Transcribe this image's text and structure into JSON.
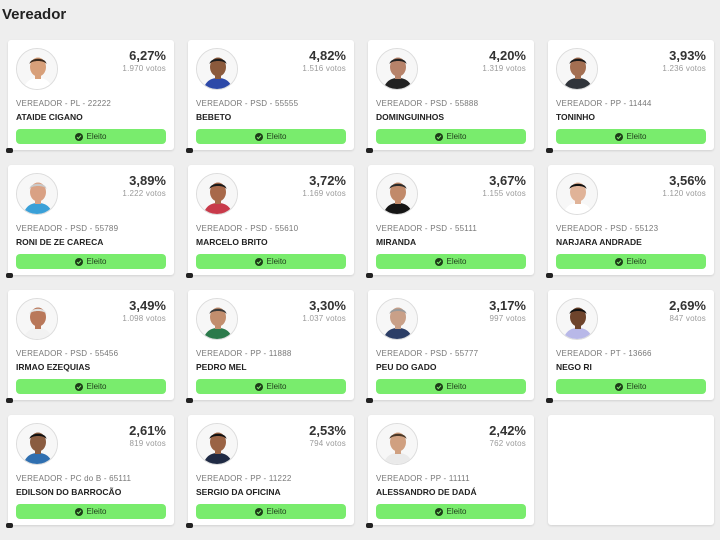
{
  "header": {
    "title": "Vereador"
  },
  "candidates": [
    {
      "pct": "6,27%",
      "votes": "1.970 votos",
      "meta": "VEREADOR - PL - 22222",
      "name": "ATAIDE CIGANO",
      "status": "Eleito",
      "skin": "#d8a07a",
      "shirt": "#ffffff",
      "hair": "#3a2a1e"
    },
    {
      "pct": "4,82%",
      "votes": "1.516 votos",
      "meta": "VEREADOR - PSD - 55555",
      "name": "BEBETO",
      "status": "Eleito",
      "skin": "#8b5a3c",
      "shirt": "#2d49a8",
      "hair": "#1c1c1c"
    },
    {
      "pct": "4,20%",
      "votes": "1.319 votos",
      "meta": "VEREADOR - PSD - 55888",
      "name": "DOMINGUINHOS",
      "status": "Eleito",
      "skin": "#b7836a",
      "shirt": "#222222",
      "hair": "#222222"
    },
    {
      "pct": "3,93%",
      "votes": "1.236 votos",
      "meta": "VEREADOR - PP - 11444",
      "name": "TONINHO",
      "status": "Eleito",
      "skin": "#a36f52",
      "shirt": "#30343a",
      "hair": "#1a1a1a"
    },
    {
      "pct": "3,89%",
      "votes": "1.222 votos",
      "meta": "VEREADOR - PSD - 55789",
      "name": "RONI DE ZE CARECA",
      "status": "Eleito",
      "skin": "#d9a184",
      "shirt": "#3aa0d8",
      "hair": "#c9c9c9"
    },
    {
      "pct": "3,72%",
      "votes": "1.169 votos",
      "meta": "VEREADOR - PSD - 55610",
      "name": "MARCELO BRITO",
      "status": "Eleito",
      "skin": "#a8694a",
      "shirt": "#c83a4a",
      "hair": "#1a1a1a"
    },
    {
      "pct": "3,67%",
      "votes": "1.155 votos",
      "meta": "VEREADOR - PSD - 55111",
      "name": "MIRANDA",
      "status": "Eleito",
      "skin": "#c18a6a",
      "shirt": "#151515",
      "hair": "#2b2b2b"
    },
    {
      "pct": "3,56%",
      "votes": "1.120 votos",
      "meta": "VEREADOR - PSD - 55123",
      "name": "NARJARA ANDRADE",
      "status": "Eleito",
      "skin": "#e0b398",
      "shirt": "#ffffff",
      "hair": "#111111"
    },
    {
      "pct": "3,49%",
      "votes": "1.098 votos",
      "meta": "VEREADOR - PSD - 55456",
      "name": "IRMAO EZEQUIAS",
      "status": "Eleito",
      "skin": "#b9785a",
      "shirt": "#f2f2f2",
      "hair": "#e0e0e0"
    },
    {
      "pct": "3,30%",
      "votes": "1.037 votos",
      "meta": "VEREADOR - PP - 11888",
      "name": "PEDRO MEL",
      "status": "Eleito",
      "skin": "#c28e6e",
      "shirt": "#2b7a4b",
      "hair": "#3a3a3a"
    },
    {
      "pct": "3,17%",
      "votes": "997 votos",
      "meta": "VEREADOR - PSD - 55777",
      "name": "PEU DO GADO",
      "status": "Eleito",
      "skin": "#c9a088",
      "shirt": "#2c3e66",
      "hair": "#9a9a9a"
    },
    {
      "pct": "2,69%",
      "votes": "847 votos",
      "meta": "VEREADOR - PT - 13666",
      "name": "NEGO RI",
      "status": "Eleito",
      "skin": "#6e442c",
      "shirt": "#b8b8e8",
      "hair": "#111111"
    },
    {
      "pct": "2,61%",
      "votes": "819 votos",
      "meta": "VEREADOR - PC do B - 65111",
      "name": "EDILSON DO BARROCÃO",
      "status": "Eleito",
      "skin": "#8a5c40",
      "shirt": "#2f6fb0",
      "hair": "#111111"
    },
    {
      "pct": "2,53%",
      "votes": "794 votos",
      "meta": "VEREADOR - PP - 11222",
      "name": "SERGIO DA OFICINA",
      "status": "Eleito",
      "skin": "#9a6344",
      "shirt": "#1f2a44",
      "hair": "#111111"
    },
    {
      "pct": "2,42%",
      "votes": "762 votos",
      "meta": "VEREADOR - PP - 11111",
      "name": "ALESSANDRO DE DADÁ",
      "status": "Eleito",
      "skin": "#d0a080",
      "shirt": "#eaeaea",
      "hair": "#4a3828"
    }
  ]
}
